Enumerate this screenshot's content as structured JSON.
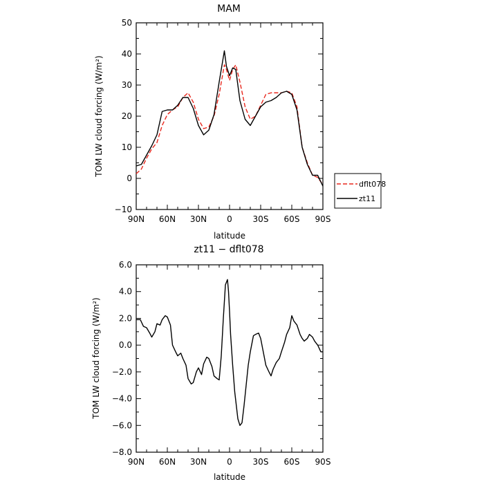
{
  "chart_data": [
    {
      "type": "line",
      "title": "MAM",
      "xlabel": "latitude",
      "ylabel": "TOM LW cloud forcing (W/m²)",
      "ylim": [
        -10,
        50
      ],
      "xlim": [
        90,
        -90
      ],
      "x_tick_labels": [
        "90N",
        "60N",
        "30N",
        "0",
        "30S",
        "60S",
        "90S"
      ],
      "y_tick_labels": [
        "−10",
        "0",
        "10",
        "20",
        "30",
        "40",
        "50"
      ],
      "legend": "right, outside plot",
      "series": [
        {
          "name": "dflt078",
          "color": "#e8261c",
          "dash": "dashed",
          "x": [
            90,
            85,
            80,
            75,
            70,
            65,
            60,
            55,
            50,
            45,
            40,
            35,
            30,
            25,
            20,
            15,
            10,
            5,
            3,
            0,
            -3,
            -6,
            -10,
            -15,
            -20,
            -25,
            -30,
            -35,
            -40,
            -45,
            -50,
            -55,
            -60,
            -65,
            -70,
            -75,
            -80,
            -85,
            -90
          ],
          "y": [
            1.5,
            3,
            6.5,
            9.5,
            11.5,
            17,
            20.5,
            22,
            23,
            26,
            27.5,
            24.5,
            19,
            16,
            16.5,
            20,
            27,
            36.5,
            35,
            31.5,
            35,
            36.5,
            31,
            23,
            19,
            20,
            23.5,
            27,
            27.5,
            27.5,
            27.5,
            28,
            27.5,
            23,
            10,
            5,
            1,
            0.3,
            -2
          ]
        },
        {
          "name": "zt11",
          "color": "#000000",
          "dash": "solid",
          "x": [
            90,
            85,
            80,
            75,
            70,
            65,
            60,
            55,
            50,
            45,
            40,
            35,
            30,
            25,
            20,
            15,
            10,
            5,
            3,
            0,
            -3,
            -6,
            -10,
            -15,
            -20,
            -25,
            -30,
            -35,
            -40,
            -45,
            -50,
            -55,
            -60,
            -65,
            -70,
            -75,
            -80,
            -85,
            -90
          ],
          "y": [
            4,
            4.5,
            7.5,
            10.5,
            14,
            21.5,
            22,
            22,
            23.5,
            26,
            26,
            22.5,
            17,
            14,
            15.5,
            20.5,
            31,
            41,
            36,
            33,
            35.5,
            35,
            25,
            19,
            17,
            20,
            23,
            24.5,
            25,
            26,
            27.5,
            28,
            27,
            22,
            10,
            4.5,
            1,
            1,
            -2.5
          ]
        }
      ]
    },
    {
      "type": "line",
      "title": "zt11 − dflt078",
      "xlabel": "latitude",
      "ylabel": "TOM LW cloud forcing (W/m²)",
      "ylim": [
        -8,
        6
      ],
      "xlim": [
        90,
        -90
      ],
      "x_tick_labels": [
        "90N",
        "60N",
        "30N",
        "0",
        "30S",
        "60S",
        "90S"
      ],
      "y_tick_labels": [
        "−8.0",
        "−6.0",
        "−4.0",
        "−2.0",
        "0.0",
        "2.0",
        "4.0",
        "6.0"
      ],
      "series": [
        {
          "name": "",
          "color": "#000000",
          "dash": "solid",
          "x": [
            90,
            86,
            83,
            80,
            77,
            75,
            72,
            70,
            67,
            65,
            62,
            60,
            57,
            55,
            52,
            50,
            47,
            45,
            42,
            40,
            37,
            35,
            32,
            30,
            27,
            25,
            22,
            20,
            17,
            15,
            12,
            10,
            8,
            6,
            4,
            2,
            1,
            0,
            -1,
            -3,
            -5,
            -8,
            -10,
            -12,
            -14,
            -16,
            -18,
            -20,
            -23,
            -25,
            -28,
            -30,
            -32,
            -35,
            -38,
            -40,
            -42,
            -45,
            -48,
            -50,
            -53,
            -55,
            -58,
            -60,
            -62,
            -65,
            -68,
            -70,
            -72,
            -75,
            -77,
            -80,
            -82,
            -85,
            -88,
            -90
          ],
          "y": [
            1.9,
            1.9,
            1.4,
            1.3,
            0.9,
            0.6,
            1.0,
            1.6,
            1.5,
            1.9,
            2.2,
            2.1,
            1.5,
            0.0,
            -0.5,
            -0.8,
            -0.6,
            -1.0,
            -1.5,
            -2.5,
            -2.9,
            -2.8,
            -2.0,
            -1.7,
            -2.2,
            -1.4,
            -0.9,
            -1.0,
            -1.6,
            -2.3,
            -2.5,
            -2.6,
            -0.8,
            2.0,
            4.5,
            4.9,
            4.0,
            2.5,
            0.8,
            -1.5,
            -3.5,
            -5.5,
            -6.0,
            -5.8,
            -4.5,
            -3.0,
            -1.5,
            -0.5,
            0.7,
            0.8,
            0.9,
            0.5,
            -0.3,
            -1.5,
            -2.0,
            -2.3,
            -1.8,
            -1.3,
            -1.0,
            -0.5,
            0.2,
            0.8,
            1.3,
            2.2,
            1.8,
            1.5,
            0.8,
            0.5,
            0.3,
            0.5,
            0.8,
            0.6,
            0.3,
            0.0,
            -0.5,
            -0.5
          ]
        }
      ]
    }
  ]
}
